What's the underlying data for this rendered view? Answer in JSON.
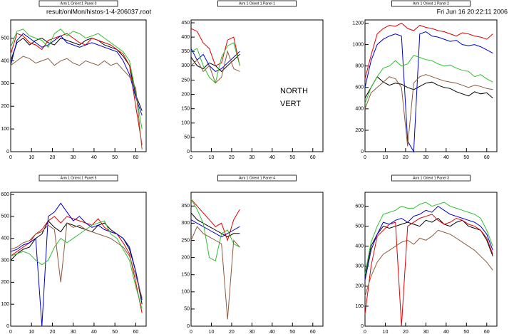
{
  "file_label": "result/onlMon/histos-1-4-206037.root",
  "timestamp": "Fri Jun 16 20:22:11 2006",
  "chart_data": [
    {
      "type": "line",
      "title": "Arm 1 Orient 1 Panel 0",
      "x": [
        0,
        3,
        6,
        9,
        12,
        15,
        18,
        21,
        24,
        27,
        30,
        33,
        36,
        39,
        42,
        45,
        48,
        51,
        54,
        57,
        60,
        63
      ],
      "xlim": [
        0,
        65
      ],
      "xticks": [
        0,
        10,
        20,
        30,
        40,
        50,
        60
      ],
      "ylim": [
        0,
        580
      ],
      "yticks": [
        0,
        100,
        200,
        300,
        400,
        500
      ],
      "series": [
        {
          "color": "#000000",
          "values": [
            400,
            480,
            500,
            470,
            490,
            500,
            480,
            470,
            500,
            490,
            480,
            470,
            490,
            500,
            490,
            470,
            460,
            450,
            420,
            380,
            250,
            180
          ]
        },
        {
          "color": "#e00000",
          "values": [
            430,
            520,
            510,
            480,
            470,
            450,
            490,
            500,
            510,
            520,
            500,
            480,
            470,
            500,
            490,
            480,
            470,
            450,
            430,
            380,
            200,
            30
          ]
        },
        {
          "color": "#0000d0",
          "values": [
            380,
            490,
            520,
            500,
            480,
            460,
            470,
            490,
            510,
            480,
            470,
            460,
            470,
            480,
            470,
            460,
            450,
            440,
            400,
            340,
            240,
            160
          ]
        },
        {
          "color": "#30c030",
          "values": [
            460,
            530,
            540,
            510,
            500,
            490,
            460,
            520,
            540,
            510,
            530,
            520,
            500,
            510,
            520,
            500,
            480,
            460,
            440,
            400,
            260,
            100
          ]
        },
        {
          "color": "#8b5a3c",
          "values": [
            380,
            400,
            420,
            410,
            390,
            400,
            410,
            380,
            400,
            410,
            390,
            380,
            400,
            390,
            380,
            400,
            380,
            390,
            360,
            330,
            280,
            10
          ]
        }
      ]
    },
    {
      "type": "line",
      "title": "Arm 1 Orient 1 Panel 1",
      "annotations": [
        "NORTH",
        "VERT"
      ],
      "x": [
        0,
        3,
        6,
        9,
        12,
        15,
        18,
        21,
        24
      ],
      "xlim": [
        0,
        65
      ],
      "xticks": [
        0,
        10,
        20,
        30,
        40,
        50,
        60
      ],
      "ylim": [
        0,
        460
      ],
      "yticks": [
        0,
        50,
        100,
        150,
        200,
        250,
        300,
        350,
        400,
        450
      ],
      "series": [
        {
          "color": "#000000",
          "values": [
            330,
            300,
            290,
            310,
            300,
            280,
            300,
            320,
            340
          ]
        },
        {
          "color": "#e00000",
          "values": [
            430,
            420,
            380,
            360,
            300,
            310,
            390,
            400,
            300
          ]
        },
        {
          "color": "#0000d0",
          "values": [
            360,
            320,
            340,
            300,
            280,
            290,
            310,
            330,
            350
          ]
        },
        {
          "color": "#30c030",
          "values": [
            350,
            360,
            300,
            260,
            240,
            330,
            370,
            380,
            300
          ]
        },
        {
          "color": "#8b5a3c",
          "values": [
            300,
            320,
            280,
            300,
            240,
            260,
            350,
            290,
            280
          ]
        }
      ]
    },
    {
      "type": "line",
      "title": "Arm 1 Orient 1 Panel 2",
      "x": [
        0,
        3,
        6,
        9,
        12,
        15,
        18,
        21,
        24,
        27,
        30,
        33,
        36,
        39,
        42,
        45,
        48,
        51,
        54,
        57,
        60,
        63
      ],
      "xlim": [
        0,
        65
      ],
      "xticks": [
        0,
        10,
        20,
        30,
        40,
        50,
        60
      ],
      "ylim": [
        0,
        1230
      ],
      "yticks": [
        0,
        200,
        400,
        600,
        800,
        1000,
        1200
      ],
      "series": [
        {
          "color": "#000000",
          "values": [
            500,
            600,
            700,
            650,
            620,
            640,
            630,
            600,
            580,
            610,
            640,
            650,
            620,
            600,
            590,
            560,
            540,
            520,
            560,
            540,
            550,
            500
          ]
        },
        {
          "color": "#e00000",
          "values": [
            680,
            900,
            1100,
            1150,
            1180,
            1170,
            1200,
            1150,
            1130,
            1180,
            1160,
            1150,
            1130,
            1120,
            1100,
            1080,
            1110,
            1100,
            1080,
            1070,
            1050,
            1100
          ]
        },
        {
          "color": "#0000d0",
          "values": [
            600,
            850,
            1000,
            1050,
            1080,
            1100,
            1080,
            100,
            0,
            1100,
            1120,
            1080,
            1070,
            1050,
            1030,
            1040,
            1000,
            990,
            1000,
            980,
            950,
            920
          ]
        },
        {
          "color": "#30c030",
          "values": [
            450,
            600,
            700,
            780,
            800,
            850,
            800,
            820,
            900,
            880,
            860,
            850,
            820,
            800,
            810,
            780,
            760,
            750,
            700,
            720,
            680,
            650
          ]
        },
        {
          "color": "#8b5a3c",
          "values": [
            400,
            550,
            600,
            650,
            700,
            680,
            600,
            50,
            640,
            700,
            720,
            700,
            680,
            660,
            650,
            640,
            620,
            600,
            620,
            610,
            590,
            580
          ]
        }
      ]
    },
    {
      "type": "line",
      "title": "Arm 1 Orient 1 Panel 5",
      "x": [
        0,
        3,
        6,
        9,
        12,
        15,
        18,
        21,
        24,
        27,
        30,
        33,
        36,
        39,
        42,
        45,
        48,
        51,
        54,
        57,
        60,
        63
      ],
      "xlim": [
        0,
        65
      ],
      "xticks": [
        0,
        10,
        20,
        30,
        40,
        50,
        60
      ],
      "ylim": [
        0,
        610
      ],
      "yticks": [
        0,
        100,
        200,
        300,
        400,
        500,
        600
      ],
      "series": [
        {
          "color": "#000000",
          "values": [
            300,
            330,
            350,
            360,
            400,
            420,
            480,
            450,
            430,
            470,
            460,
            450,
            440,
            430,
            460,
            470,
            440,
            420,
            400,
            350,
            250,
            100
          ]
        },
        {
          "color": "#e00000",
          "values": [
            320,
            340,
            360,
            380,
            420,
            440,
            480,
            500,
            470,
            500,
            490,
            480,
            470,
            460,
            490,
            450,
            430,
            420,
            380,
            330,
            200,
            60
          ]
        },
        {
          "color": "#0000d0",
          "values": [
            340,
            350,
            370,
            380,
            400,
            0,
            500,
            520,
            560,
            520,
            480,
            500,
            470,
            450,
            460,
            440,
            430,
            420,
            400,
            360,
            250,
            120
          ]
        },
        {
          "color": "#30c030",
          "values": [
            320,
            330,
            340,
            330,
            300,
            280,
            300,
            360,
            400,
            380,
            400,
            420,
            440,
            460,
            470,
            480,
            420,
            400,
            350,
            300,
            180,
            80
          ]
        },
        {
          "color": "#8b5a3c",
          "values": [
            350,
            360,
            380,
            390,
            420,
            430,
            460,
            440,
            200,
            470,
            450,
            460,
            440,
            430,
            420,
            410,
            400,
            380,
            360,
            320,
            230,
            130
          ]
        }
      ]
    },
    {
      "type": "line",
      "title": "Arm 1 Orient 1 Panel 4",
      "x": [
        0,
        3,
        6,
        9,
        12,
        15,
        18,
        21,
        24
      ],
      "xlim": [
        0,
        65
      ],
      "xticks": [
        0,
        10,
        20,
        30,
        40,
        50,
        60
      ],
      "ylim": [
        0,
        390
      ],
      "yticks": [
        0,
        50,
        100,
        150,
        200,
        250,
        300,
        350
      ],
      "series": [
        {
          "color": "#000000",
          "values": [
            330,
            310,
            300,
            290,
            280,
            270,
            260,
            270,
            270
          ]
        },
        {
          "color": "#e00000",
          "values": [
            370,
            350,
            330,
            310,
            290,
            300,
            250,
            310,
            340
          ]
        },
        {
          "color": "#0000d0",
          "values": [
            310,
            300,
            290,
            280,
            270,
            260,
            270,
            280,
            290
          ]
        },
        {
          "color": "#30c030",
          "values": [
            370,
            340,
            300,
            200,
            190,
            270,
            280,
            240,
            230
          ]
        },
        {
          "color": "#8b5a3c",
          "values": [
            250,
            290,
            270,
            260,
            250,
            240,
            20,
            250,
            230
          ]
        }
      ]
    },
    {
      "type": "line",
      "title": "Arm 1 Orient 1 Panel 3",
      "x": [
        0,
        3,
        6,
        9,
        12,
        15,
        18,
        21,
        24,
        27,
        30,
        33,
        36,
        39,
        42,
        45,
        48,
        51,
        54,
        57,
        60,
        63
      ],
      "xlim": [
        0,
        65
      ],
      "xticks": [
        0,
        10,
        20,
        30,
        40,
        50,
        60
      ],
      "ylim": [
        0,
        670
      ],
      "yticks": [
        0,
        100,
        200,
        300,
        400,
        500,
        600
      ],
      "series": [
        {
          "color": "#000000",
          "values": [
            250,
            400,
            460,
            500,
            490,
            500,
            510,
            520,
            510,
            500,
            530,
            520,
            540,
            510,
            500,
            520,
            530,
            500,
            490,
            480,
            430,
            350
          ]
        },
        {
          "color": "#e00000",
          "values": [
            60,
            300,
            450,
            480,
            510,
            520,
            0,
            500,
            520,
            540,
            550,
            560,
            530,
            510,
            520,
            540,
            530,
            510,
            500,
            480,
            440,
            360
          ]
        },
        {
          "color": "#0000d0",
          "values": [
            230,
            380,
            460,
            520,
            510,
            530,
            540,
            520,
            550,
            560,
            580,
            570,
            600,
            580,
            560,
            550,
            540,
            530,
            520,
            500,
            460,
            380
          ]
        },
        {
          "color": "#30c030",
          "values": [
            260,
            420,
            500,
            560,
            570,
            580,
            600,
            590,
            590,
            610,
            620,
            600,
            610,
            620,
            600,
            590,
            580,
            570,
            560,
            540,
            480,
            400
          ]
        },
        {
          "color": "#8b5a3c",
          "values": [
            150,
            250,
            320,
            360,
            380,
            400,
            420,
            430,
            410,
            440,
            430,
            450,
            480,
            470,
            460,
            440,
            420,
            400,
            380,
            350,
            320,
            280
          ]
        }
      ]
    }
  ]
}
